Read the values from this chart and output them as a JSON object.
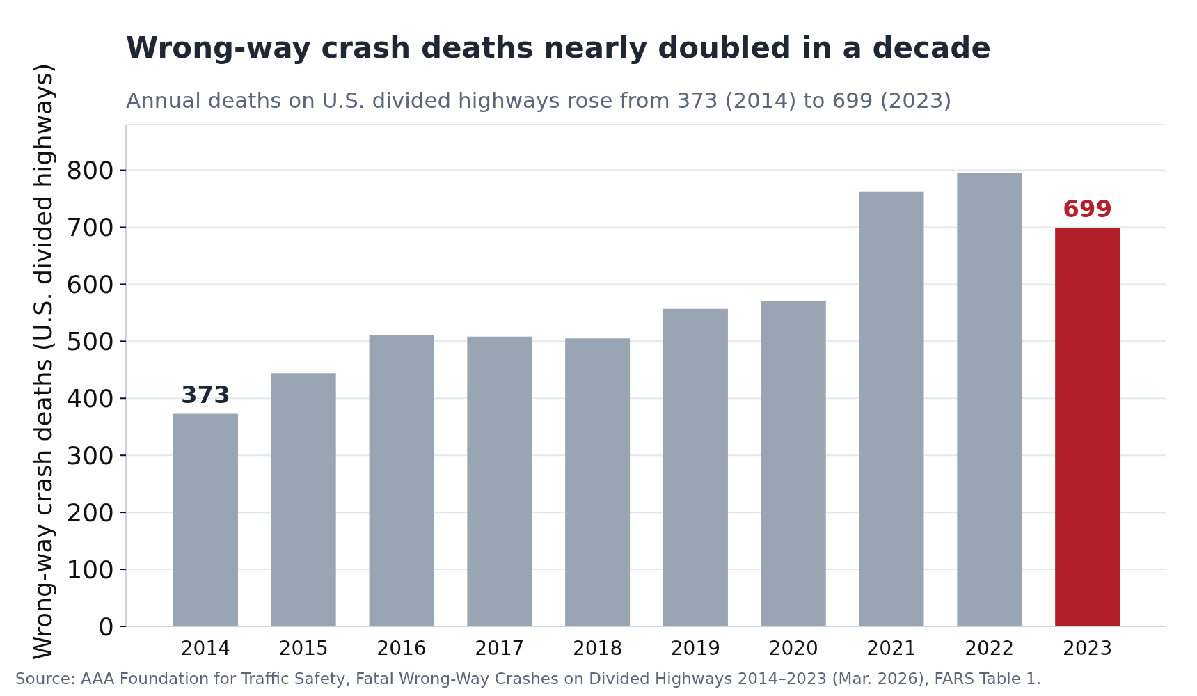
{
  "chart_data": {
    "type": "bar",
    "title": "Wrong-way crash deaths nearly doubled in a decade",
    "subtitle": "Annual deaths on U.S. divided highways rose from 373 (2014) to 699 (2023)",
    "ylabel": "Wrong-way crash deaths (U.S. divided highways)",
    "categories": [
      "2014",
      "2015",
      "2016",
      "2017",
      "2018",
      "2019",
      "2020",
      "2021",
      "2022",
      "2023"
    ],
    "values": [
      373,
      444,
      511,
      508,
      505,
      557,
      571,
      762,
      795,
      699
    ],
    "colors": [
      "#9aa5b3",
      "#9aa5b3",
      "#9aa5b3",
      "#9aa5b3",
      "#9aa5b3",
      "#9aa5b3",
      "#9aa5b3",
      "#9aa5b3",
      "#9aa5b3",
      "#b31f2b"
    ],
    "value_labels": [
      "373",
      null,
      null,
      null,
      null,
      null,
      null,
      null,
      null,
      "699"
    ],
    "ylim": [
      0,
      880
    ],
    "yticks": [
      0,
      100,
      200,
      300,
      400,
      500,
      600,
      700,
      800
    ],
    "grid": "y",
    "annotations": [
      "Source: AAA Foundation for Traffic Safety, Fatal Wrong-Way Crashes on Divided Highways 2014–2023 (Mar. 2026), FARS Table 1."
    ]
  }
}
